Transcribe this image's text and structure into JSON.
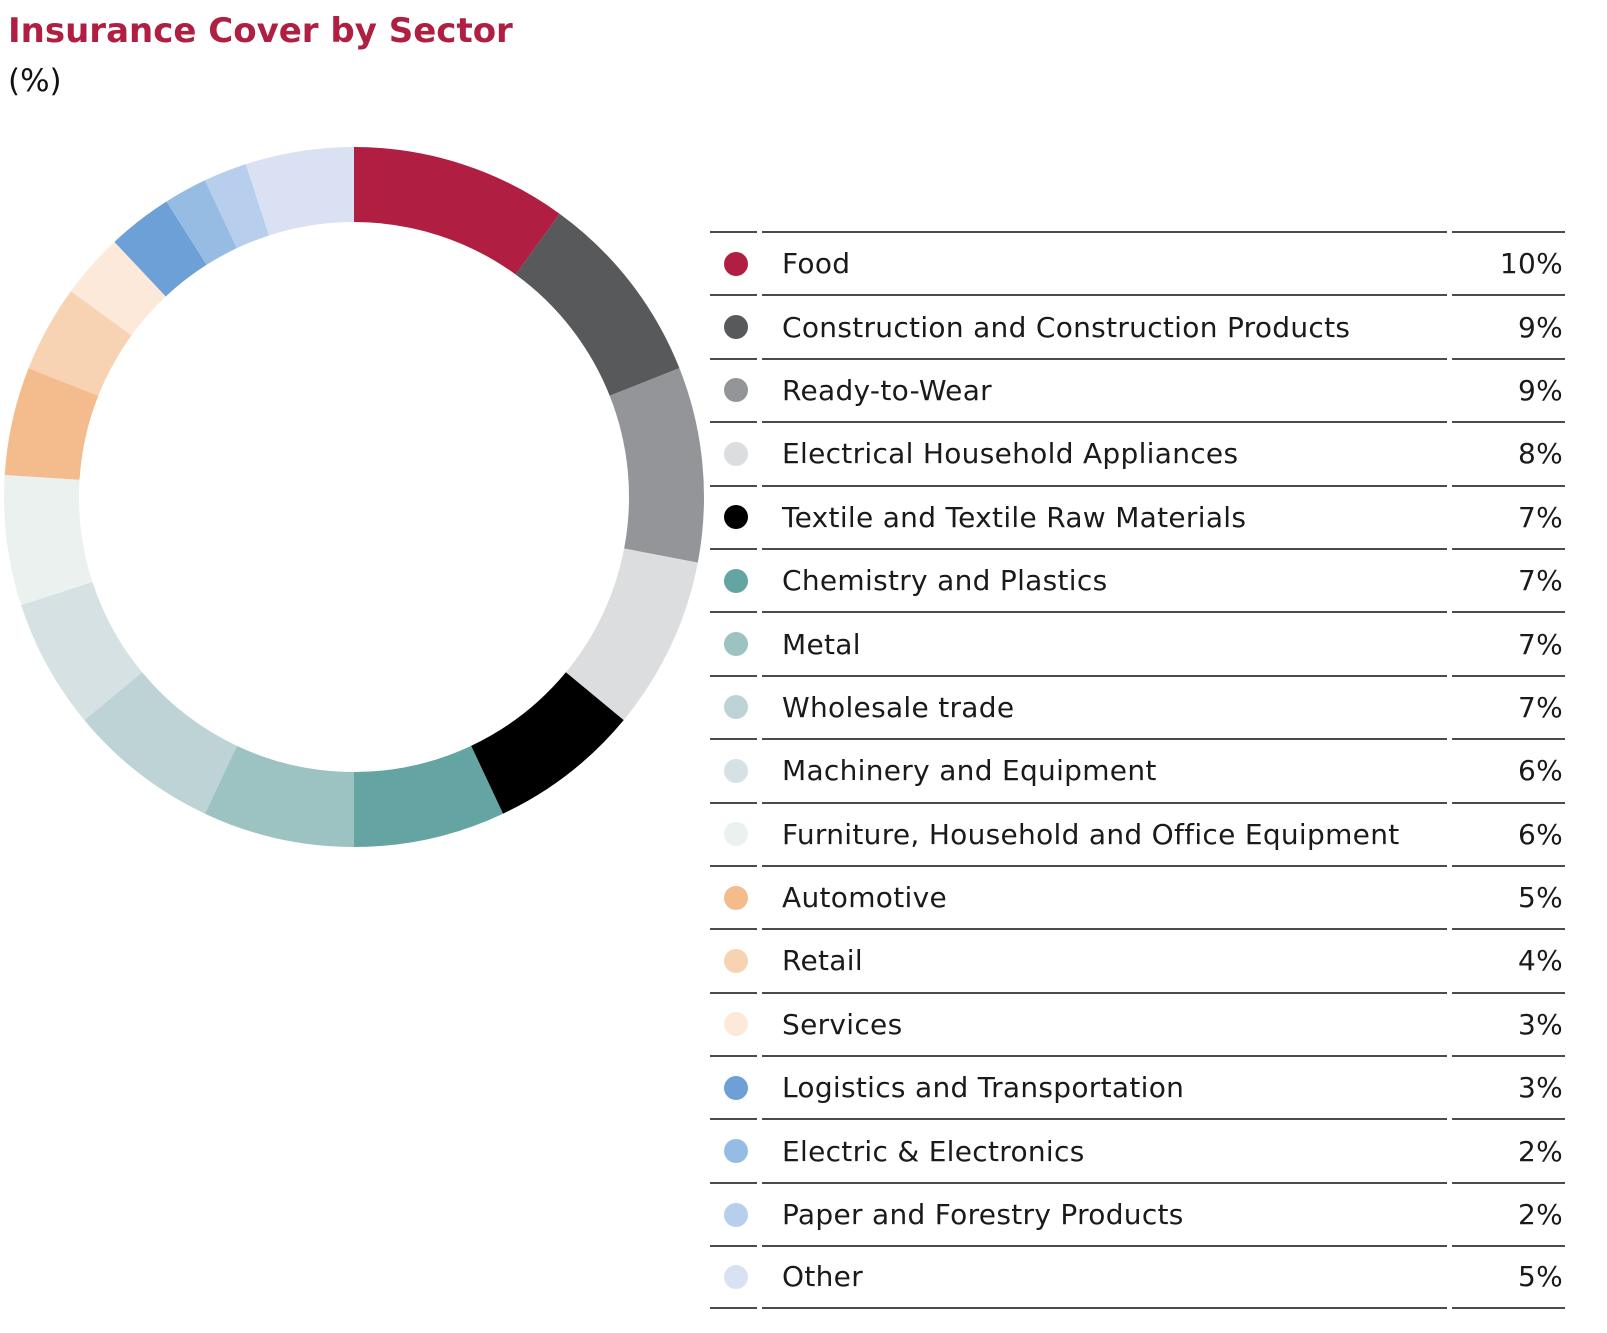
{
  "header": {
    "title": "Insurance Cover by Sector",
    "subtitle": "(%)"
  },
  "chart_data": {
    "type": "pie",
    "variant": "donut",
    "title": "Insurance Cover by Sector",
    "unit_label": "(%)",
    "direction": "clockwise",
    "start_angle": "12-oclock",
    "legend_position": "right-table",
    "value_suffix": "%",
    "categories": [
      "Food",
      "Construction and Construction Products",
      "Ready-to-Wear",
      "Electrical Household Appliances",
      "Textile and Textile Raw Materials",
      "Chemistry and Plastics",
      "Metal",
      "Wholesale trade",
      "Machinery and Equipment",
      "Furniture, Household and Office Equipment",
      "Automotive",
      "Retail",
      "Services",
      "Logistics and Transportation",
      "Electric & Electronics",
      "Paper and Forestry Products",
      "Other"
    ],
    "values": [
      10,
      9,
      9,
      8,
      7,
      7,
      7,
      7,
      6,
      6,
      5,
      4,
      3,
      3,
      2,
      2,
      5
    ],
    "colors": [
      "#B01E42",
      "#58595B",
      "#939598",
      "#DCDDDE",
      "#000000",
      "#64A5A3",
      "#9CC2C1",
      "#BDD3D5",
      "#D5E1E2",
      "#EBF1EF",
      "#F4BC8C",
      "#F8D3B3",
      "#FCE9D9",
      "#6CA0D6",
      "#97BCE3",
      "#B7CEEC",
      "#D9E1F3"
    ]
  },
  "theme": {
    "accent": "#B01E42",
    "divider": "#4B4B4D",
    "text": "#1A1A1A",
    "background": "#FFFFFF"
  }
}
